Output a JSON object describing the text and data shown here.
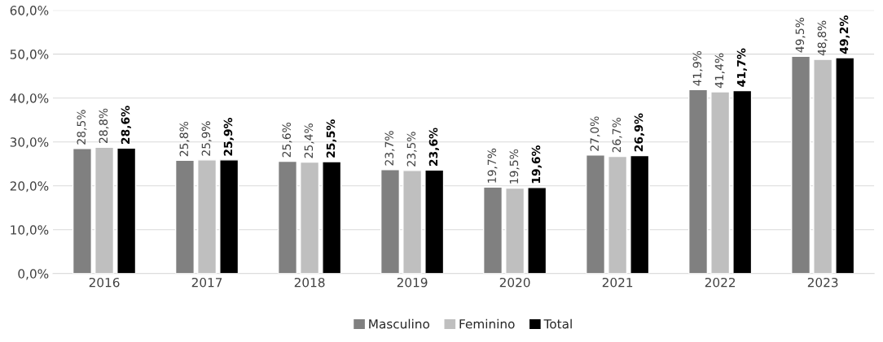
{
  "chart_data": {
    "type": "bar",
    "categories": [
      "2016",
      "2017",
      "2018",
      "2019",
      "2020",
      "2021",
      "2022",
      "2023"
    ],
    "series": [
      {
        "name": "Masculino",
        "color": "#808080",
        "values": [
          28.5,
          25.8,
          25.6,
          23.7,
          19.7,
          27.0,
          41.9,
          49.5
        ],
        "value_labels": [
          "28,5%",
          "25,8%",
          "25,6%",
          "23,7%",
          "19,7%",
          "27,0%",
          "41,9%",
          "49,5%"
        ]
      },
      {
        "name": "Feminino",
        "color": "#bfbfbf",
        "values": [
          28.8,
          25.9,
          25.4,
          23.5,
          19.5,
          26.7,
          41.4,
          48.8
        ],
        "value_labels": [
          "28,8%",
          "25,9%",
          "25,4%",
          "23,5%",
          "19,5%",
          "26,7%",
          "41,4%",
          "48,8%"
        ]
      },
      {
        "name": "Total",
        "color": "#000000",
        "values": [
          28.6,
          25.9,
          25.5,
          23.6,
          19.6,
          26.9,
          41.7,
          49.2
        ],
        "value_labels": [
          "28,6%",
          "25,9%",
          "25,5%",
          "23,6%",
          "19,6%",
          "26,9%",
          "41,7%",
          "49,2%"
        ]
      }
    ],
    "ylim": [
      0,
      60
    ],
    "yticks": [
      {
        "value": 0,
        "label": "0,0%"
      },
      {
        "value": 10,
        "label": "10,0%"
      },
      {
        "value": 20,
        "label": "20,0%"
      },
      {
        "value": 30,
        "label": "30,0%"
      },
      {
        "value": 40,
        "label": "40,0%"
      },
      {
        "value": 50,
        "label": "50,0%"
      },
      {
        "value": 60,
        "label": "60,0%"
      }
    ],
    "grid": "y",
    "legend": "bottom"
  }
}
